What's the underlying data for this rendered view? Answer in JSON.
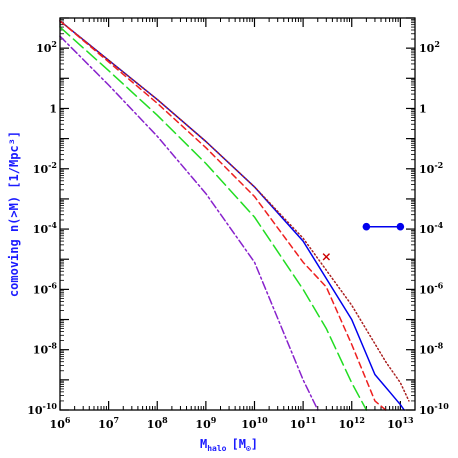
{
  "chart_data": {
    "type": "line",
    "xlabel": "M_halo [M_⊙]",
    "xlabel_main": "M",
    "xlabel_sub": "halo",
    "xlabel_unit_open": "[M",
    "xlabel_unit_sym": "⊙",
    "xlabel_unit_close": "]",
    "ylabel": "comoving n(>M) [1/Mpc³]",
    "x_scale": "log",
    "y_scale": "log",
    "xlim": [
      1000000,
      20000000000000
    ],
    "ylim": [
      1e-10,
      1000
    ],
    "x_ticks": [
      {
        "value": 1000000,
        "base": "10",
        "exp": "6"
      },
      {
        "value": 10000000,
        "base": "10",
        "exp": "7"
      },
      {
        "value": 100000000,
        "base": "10",
        "exp": "8"
      },
      {
        "value": 1000000000,
        "base": "10",
        "exp": "9"
      },
      {
        "value": 10000000000,
        "base": "10",
        "exp": "10"
      },
      {
        "value": 100000000000,
        "base": "10",
        "exp": "11"
      },
      {
        "value": 1000000000000,
        "base": "10",
        "exp": "12"
      },
      {
        "value": 10000000000000,
        "base": "10",
        "exp": "13"
      }
    ],
    "y_ticks": [
      {
        "value": 100,
        "base": "10",
        "exp": "2"
      },
      {
        "value": 1,
        "base": "1",
        "exp": ""
      },
      {
        "value": 0.01,
        "base": "10",
        "exp": "-2"
      },
      {
        "value": 0.0001,
        "base": "10",
        "exp": "-4"
      },
      {
        "value": 1e-06,
        "base": "10",
        "exp": "-6"
      },
      {
        "value": 1e-08,
        "base": "10",
        "exp": "-8"
      },
      {
        "value": 1e-10,
        "base": "10",
        "exp": "-10"
      }
    ],
    "series": [
      {
        "style": "solid",
        "color": "#0000ee",
        "x": [
          1000000,
          10000000,
          100000000,
          1000000000,
          10000000000,
          100000000000,
          1000000000000,
          3000000000000,
          6000000000000,
          10000000000000,
          12000000000000
        ],
        "y": [
          800,
          40,
          2.0,
          0.08,
          0.0025,
          4e-05,
          1e-07,
          1.5e-09,
          4e-10,
          1.5e-10,
          1e-10
        ]
      },
      {
        "style": "dotted",
        "color": "#aa2020",
        "x": [
          1000000,
          10000000,
          100000000,
          1000000000,
          10000000000,
          100000000000,
          1000000000000,
          5000000000000,
          10000000000000,
          15000000000000
        ],
        "y": [
          800,
          40,
          2.0,
          0.08,
          0.0025,
          5e-05,
          3e-07,
          4e-09,
          8e-10,
          2e-10
        ]
      },
      {
        "style": "short-dashed",
        "color": "#ee2020",
        "x": [
          1000000,
          10000000,
          100000000,
          1000000000,
          10000000000,
          100000000000,
          300000000000,
          1000000000000,
          3000000000000,
          5000000000000
        ],
        "y": [
          800,
          35,
          1.5,
          0.05,
          0.0012,
          8e-06,
          1.2e-06,
          1.5e-08,
          2e-10,
          1e-10
        ]
      },
      {
        "style": "long-dashed",
        "color": "#22dd22",
        "x": [
          1000000,
          10000000,
          100000000,
          1000000000,
          10000000000,
          100000000000,
          300000000000,
          1000000000000,
          2000000000000
        ],
        "y": [
          500,
          18,
          0.6,
          0.015,
          0.00025,
          1e-06,
          5e-08,
          8e-10,
          1e-10
        ]
      },
      {
        "style": "dot-dash",
        "color": "#8822cc",
        "x": [
          1000000,
          10000000,
          100000000,
          1000000000,
          10000000000,
          100000000000,
          200000000000
        ],
        "y": [
          250,
          6,
          0.12,
          0.0015,
          8e-06,
          1e-09,
          1e-10
        ]
      }
    ],
    "markers": [
      {
        "type": "cross",
        "color": "#cc0000",
        "x": 300000000000,
        "y": 1.2e-05
      }
    ],
    "range_bar": {
      "color": "#0000ee",
      "x": [
        2000000000000,
        10000000000000
      ],
      "y": 0.00012
    }
  }
}
